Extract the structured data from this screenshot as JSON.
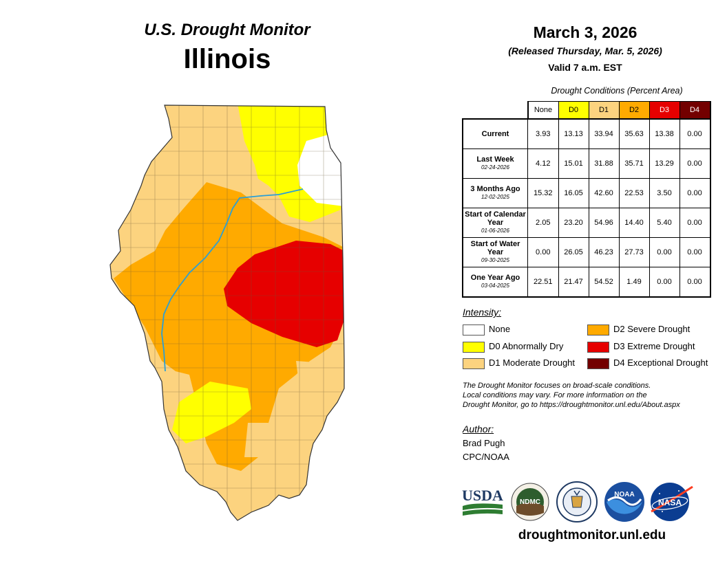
{
  "header": {
    "title": "U.S. Drought Monitor",
    "state": "Illinois",
    "date": "March 3, 2026",
    "released": "(Released Thursday, Mar. 5, 2026)",
    "valid": "Valid 7 a.m. EST"
  },
  "table": {
    "caption": "Drought Conditions (Percent Area)",
    "columns": [
      {
        "label": "None",
        "color": "#ffffff"
      },
      {
        "label": "D0",
        "color": "#ffff00"
      },
      {
        "label": "D1",
        "color": "#fcd37f"
      },
      {
        "label": "D2",
        "color": "#ffaa00"
      },
      {
        "label": "D3",
        "color": "#e60000"
      },
      {
        "label": "D4",
        "color": "#730000"
      }
    ],
    "rows": [
      {
        "label": "Current",
        "date": "",
        "values": [
          "3.93",
          "13.13",
          "33.94",
          "35.63",
          "13.38",
          "0.00"
        ]
      },
      {
        "label": "Last Week",
        "date": "02-24-2026",
        "values": [
          "4.12",
          "15.01",
          "31.88",
          "35.71",
          "13.29",
          "0.00"
        ]
      },
      {
        "label": "3 Months Ago",
        "date": "12-02-2025",
        "values": [
          "15.32",
          "16.05",
          "42.60",
          "22.53",
          "3.50",
          "0.00"
        ]
      },
      {
        "label": "Start of Calendar Year",
        "date": "01-06-2026",
        "values": [
          "2.05",
          "23.20",
          "54.96",
          "14.40",
          "5.40",
          "0.00"
        ]
      },
      {
        "label": "Start of Water Year",
        "date": "09-30-2025",
        "values": [
          "0.00",
          "26.05",
          "46.23",
          "27.73",
          "0.00",
          "0.00"
        ]
      },
      {
        "label": "One Year Ago",
        "date": "03-04-2025",
        "values": [
          "22.51",
          "21.47",
          "54.52",
          "1.49",
          "0.00",
          "0.00"
        ]
      }
    ]
  },
  "legend": {
    "title": "Intensity:",
    "items": [
      {
        "label": "None",
        "color": "#ffffff"
      },
      {
        "label": "D0 Abnormally Dry",
        "color": "#ffff00"
      },
      {
        "label": "D1 Moderate Drought",
        "color": "#fcd37f"
      },
      {
        "label": "D2 Severe Drought",
        "color": "#ffaa00"
      },
      {
        "label": "D3 Extreme Drought",
        "color": "#e60000"
      },
      {
        "label": "D4 Exceptional Drought",
        "color": "#730000"
      }
    ]
  },
  "note": {
    "line1": "The Drought Monitor focuses on broad-scale conditions.",
    "line2": "Local conditions may vary. For more information on the",
    "line3": "Drought Monitor, go to https://droughtmonitor.unl.edu/About.aspx"
  },
  "author": {
    "label": "Author:",
    "name": "Brad Pugh",
    "org": "CPC/NOAA"
  },
  "logos": {
    "usda": "USDA",
    "ndmc": "NDMC",
    "noaa": "NOAA",
    "nasa": "NASA"
  },
  "website": "droughtmonitor.unl.edu"
}
